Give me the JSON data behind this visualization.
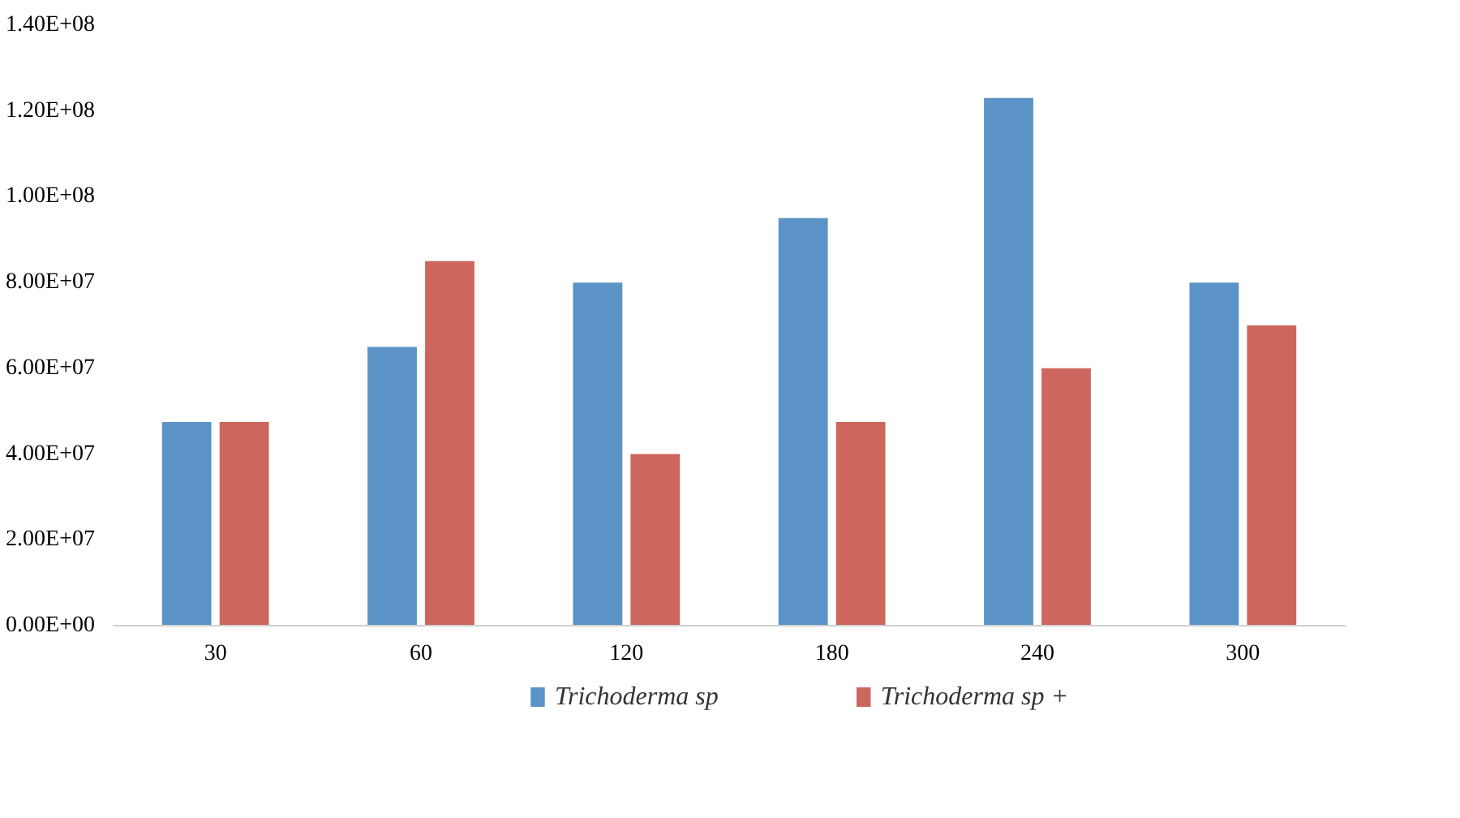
{
  "chart_data": {
    "type": "bar",
    "categories": [
      "30",
      "60",
      "120",
      "180",
      "240",
      "300"
    ],
    "series": [
      {
        "name": "Trichoderma sp",
        "color": "#5b93c7",
        "values": [
          47500000,
          65000000,
          80000000,
          95000000,
          123000000,
          80000000
        ]
      },
      {
        "name": "Trichoderma sp +",
        "color": "#cd665c",
        "values": [
          47500000,
          85000000,
          40000000,
          47500000,
          60000000,
          70000000
        ]
      }
    ],
    "ylim": [
      0,
      140000000
    ],
    "yticks": [
      {
        "value": 0,
        "label": "0.00E+00"
      },
      {
        "value": 20000000,
        "label": "2.00E+07"
      },
      {
        "value": 40000000,
        "label": "4.00E+07"
      },
      {
        "value": 60000000,
        "label": "6.00E+07"
      },
      {
        "value": 80000000,
        "label": "8.00E+07"
      },
      {
        "value": 100000000,
        "label": "1.00E+08"
      },
      {
        "value": 120000000,
        "label": "1.20E+08"
      },
      {
        "value": 140000000,
        "label": "1.40E+08"
      }
    ],
    "grid": false,
    "legend": "bottom"
  }
}
